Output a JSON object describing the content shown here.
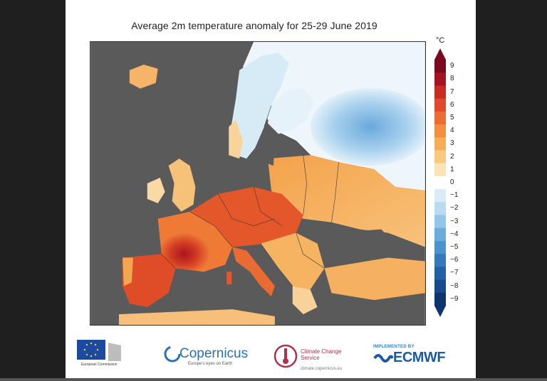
{
  "title": "Average 2m temperature anomaly for 25-29 June 2019",
  "colorbar": {
    "unit": "°C",
    "ticks": [
      "9",
      "8",
      "7",
      "6",
      "5",
      "4",
      "3",
      "2",
      "1",
      "0",
      "−1",
      "−2",
      "−3",
      "−4",
      "−5",
      "−6",
      "−7",
      "−8",
      "−9"
    ],
    "colors": [
      "#7a0a1c",
      "#a3151f",
      "#c92a22",
      "#e0492a",
      "#ec6d33",
      "#f28f3d",
      "#f6ad55",
      "#f9ca7e",
      "#fbe4b3",
      "#ffffff",
      "#d9ecf6",
      "#b8dbf0",
      "#93c6e8",
      "#6aaddd",
      "#4a93ce",
      "#3479bd",
      "#2460a8",
      "#18498f",
      "#0e3470"
    ]
  },
  "map": {
    "region": "Europe",
    "land_no_data_color": "#5a5a5a",
    "hot_color": "#c0311f",
    "cool_color": "#9ecbeb"
  },
  "footer": {
    "eu_caption": "European Commission",
    "copernicus_name": "Copernicus",
    "copernicus_tagline": "Europe's eyes on Earth",
    "c3s_title": "Climate Change Service",
    "c3s_url": "climate.copernicus.eu",
    "ecmwf_implemented": "IMPLEMENTED BY",
    "ecmwf_name": "ECMWF"
  }
}
